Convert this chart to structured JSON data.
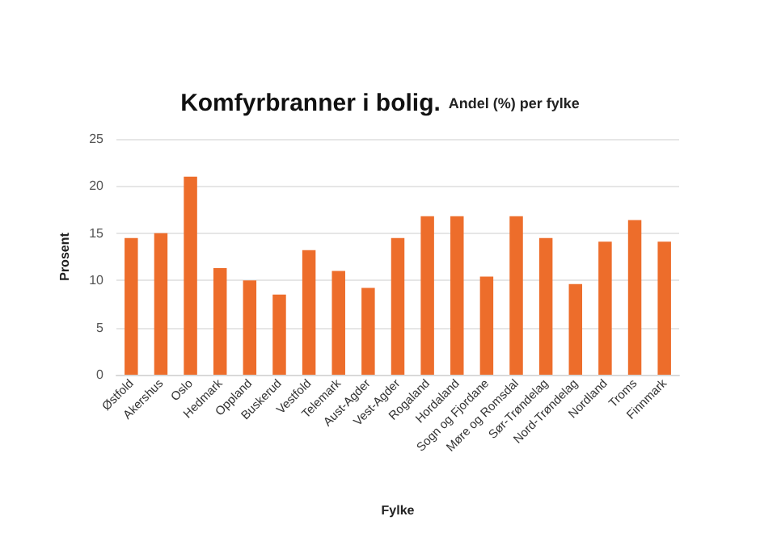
{
  "chart_data": {
    "type": "bar",
    "title": "Komfyrbranner i bolig.",
    "subtitle": "Andel (%) per fylke",
    "xlabel": "Fylke",
    "ylabel": "Prosent",
    "categories": [
      "Østfold",
      "Akershus",
      "Oslo",
      "Hedmark",
      "Oppland",
      "Buskerud",
      "Vestfold",
      "Telemark",
      "Aust-Agder",
      "Vest-Agder",
      "Rogaland",
      "Hordaland",
      "Sogn og Fjordane",
      "Møre og Romsdal",
      "Sør-Trøndelag",
      "Nord-Trøndelag",
      "Nordland",
      "Troms",
      "Finnmark"
    ],
    "values": [
      14.5,
      15,
      21,
      11.3,
      10,
      8.5,
      13.2,
      11,
      9.2,
      14.5,
      16.8,
      16.8,
      10.4,
      16.8,
      14.5,
      9.6,
      14.1,
      16.4,
      14.1
    ],
    "color": "#ed6d2b",
    "ylim": [
      0,
      25
    ],
    "yticks": [
      0,
      5,
      10,
      15,
      20,
      25
    ],
    "grid": "y"
  }
}
